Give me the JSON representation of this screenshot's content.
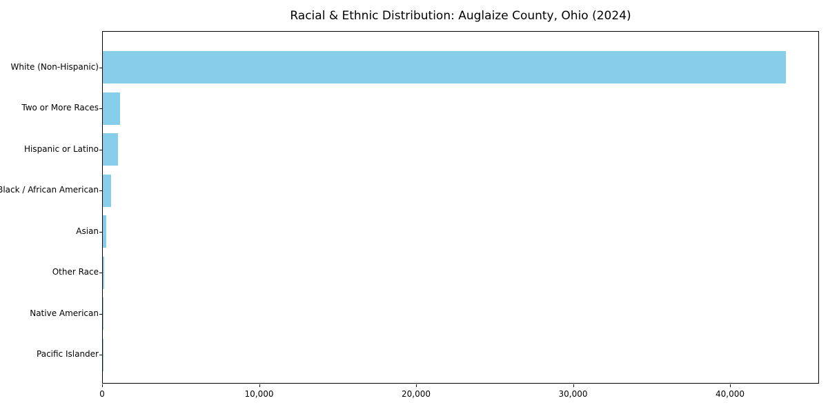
{
  "chart_data": {
    "type": "bar",
    "orientation": "horizontal",
    "title": "Racial & Ethnic Distribution: Auglaize County, Ohio (2024)",
    "xlabel": "",
    "ylabel": "",
    "categories": [
      "White (Non-Hispanic)",
      "Two or More Races",
      "Hispanic or Latino",
      "Black / African American",
      "Asian",
      "Other Race",
      "Native American",
      "Pacific Islander"
    ],
    "values": [
      43500,
      1100,
      950,
      520,
      210,
      80,
      45,
      15
    ],
    "bar_color": "#87CEEB",
    "background_color": "#ffffff",
    "xlim": [
      0,
      45670
    ],
    "x_ticks": [
      0,
      10000,
      20000,
      30000,
      40000
    ],
    "x_tick_labels": [
      "0",
      "10,000",
      "20,000",
      "30,000",
      "40,000"
    ],
    "grid": false,
    "legend": null
  }
}
